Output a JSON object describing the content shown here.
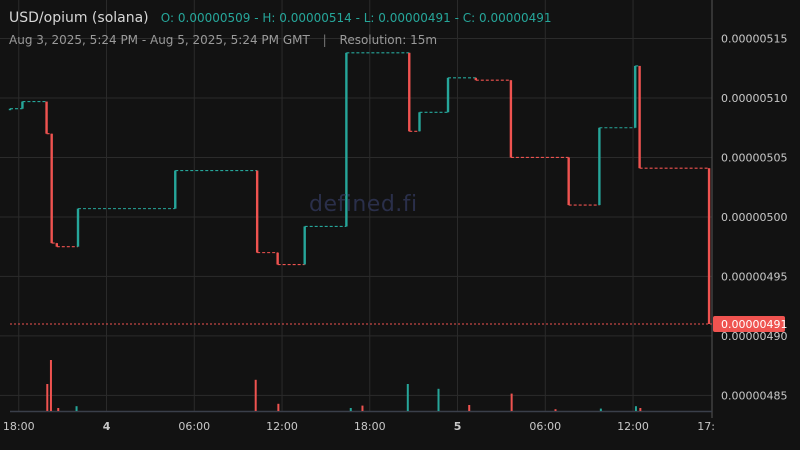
{
  "header": {
    "pair": "USD/opium (solana)",
    "ohlc": "O: 0.00000509 - H: 0.00000514 - L: 0.00000491 - C: 0.00000491",
    "range": "Aug 3, 2025, 5:24 PM - Aug 5, 2025, 5:24 PM GMT",
    "separator": "|",
    "resolution": "Resolution: 15m"
  },
  "watermark": "defined.fi",
  "colors": {
    "background": "#121212",
    "up": "#26a69a",
    "down": "#ef5350",
    "grid": "#2b2b2b",
    "price_tag": "#ef5350"
  },
  "chart_data": {
    "type": "line",
    "xlabel": "",
    "ylabel": "",
    "price_unit": "USD",
    "ylim": [
      4.836e-06,
      5.174e-06
    ],
    "y_ticks": [
      "0.00000485",
      "0.00000490",
      "0.00000495",
      "0.00000500",
      "0.00000505",
      "0.00000510",
      "0.00000515"
    ],
    "y_tick_values": [
      4.85e-06,
      4.9e-06,
      4.95e-06,
      5e-06,
      5.05e-06,
      5.1e-06,
      5.15e-06
    ],
    "x_ticks": [
      "18:00",
      "4",
      "06:00",
      "12:00",
      "18:00",
      "5",
      "06:00",
      "12:00",
      "17:"
    ],
    "x_tick_hours": [
      0.6,
      6.6,
      12.6,
      18.6,
      24.6,
      30.6,
      36.6,
      42.6,
      47.6
    ],
    "x_range_hours": [
      0,
      48
    ],
    "current_price": "0.00000491",
    "current_price_value": 4.91e-06,
    "series": [
      {
        "values": [
          {
            "t": 0.0,
            "o": 5.091e-06,
            "c": 5.091e-06
          },
          {
            "t": 0.85,
            "o": 5.091e-06,
            "c": 5.097e-06
          },
          {
            "t": 2.5,
            "o": 5.097e-06,
            "c": 5.07e-06
          },
          {
            "t": 2.85,
            "o": 5.07e-06,
            "c": 4.978e-06
          },
          {
            "t": 3.2,
            "o": 4.978e-06,
            "c": 4.975e-06
          },
          {
            "t": 4.65,
            "o": 4.975e-06,
            "c": 5.007e-06
          },
          {
            "t": 11.3,
            "o": 5.007e-06,
            "c": 5.039e-06
          },
          {
            "t": 16.9,
            "o": 5.039e-06,
            "c": 4.97e-06
          },
          {
            "t": 18.3,
            "o": 4.97e-06,
            "c": 4.96e-06
          },
          {
            "t": 20.15,
            "o": 4.96e-06,
            "c": 4.992e-06
          },
          {
            "t": 23.0,
            "o": 4.992e-06,
            "c": 5.138e-06
          },
          {
            "t": 27.3,
            "o": 5.138e-06,
            "c": 5.072e-06
          },
          {
            "t": 28.0,
            "o": 5.072e-06,
            "c": 5.088e-06
          },
          {
            "t": 29.95,
            "o": 5.088e-06,
            "c": 5.117e-06
          },
          {
            "t": 31.85,
            "o": 5.117e-06,
            "c": 5.115e-06
          },
          {
            "t": 34.25,
            "o": 5.115e-06,
            "c": 5.05e-06
          },
          {
            "t": 38.2,
            "o": 5.05e-06,
            "c": 5.01e-06
          },
          {
            "t": 40.3,
            "o": 5.01e-06,
            "c": 5.075e-06
          },
          {
            "t": 42.75,
            "o": 5.075e-06,
            "c": 5.127e-06
          },
          {
            "t": 43.05,
            "o": 5.127e-06,
            "c": 5.041e-06
          },
          {
            "t": 47.8,
            "o": 5.041e-06,
            "c": 4.91e-06
          }
        ]
      }
    ],
    "volume": [
      {
        "t": 2.55,
        "v": 0.45,
        "dir": "down"
      },
      {
        "t": 2.8,
        "v": 0.85,
        "dir": "down"
      },
      {
        "t": 3.3,
        "v": 0.05,
        "dir": "down"
      },
      {
        "t": 4.55,
        "v": 0.08,
        "dir": "up"
      },
      {
        "t": 16.8,
        "v": 0.52,
        "dir": "down"
      },
      {
        "t": 18.35,
        "v": 0.12,
        "dir": "down"
      },
      {
        "t": 23.3,
        "v": 0.05,
        "dir": "up"
      },
      {
        "t": 24.1,
        "v": 0.09,
        "dir": "down"
      },
      {
        "t": 27.2,
        "v": 0.45,
        "dir": "up"
      },
      {
        "t": 29.3,
        "v": 0.37,
        "dir": "up"
      },
      {
        "t": 31.4,
        "v": 0.1,
        "dir": "down"
      },
      {
        "t": 34.3,
        "v": 0.29,
        "dir": "down"
      },
      {
        "t": 37.3,
        "v": 0.03,
        "dir": "down"
      },
      {
        "t": 40.4,
        "v": 0.04,
        "dir": "up"
      },
      {
        "t": 42.8,
        "v": 0.08,
        "dir": "up"
      },
      {
        "t": 43.1,
        "v": 0.05,
        "dir": "down"
      }
    ],
    "grid": true
  }
}
